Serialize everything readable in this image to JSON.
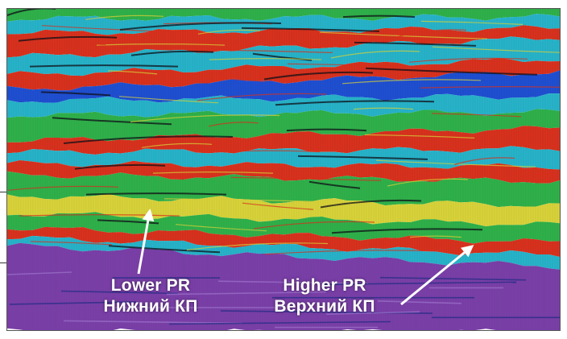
{
  "figure": {
    "colors": {
      "purple": "#7a3fa8",
      "green": "#2fb04a",
      "red": "#d8321e",
      "cyan": "#27b3c9",
      "blue": "#1f4fd1",
      "yellow": "#d8d23a",
      "black": "#101018",
      "white": "#ffffff"
    },
    "annotations": [
      {
        "line1": "Lower PR",
        "line2": "Нижний КП",
        "arrow_color": "#ffffff"
      },
      {
        "line1": "Higher PR",
        "line2": "Верхний КП",
        "arrow_color": "#ffffff"
      }
    ]
  }
}
